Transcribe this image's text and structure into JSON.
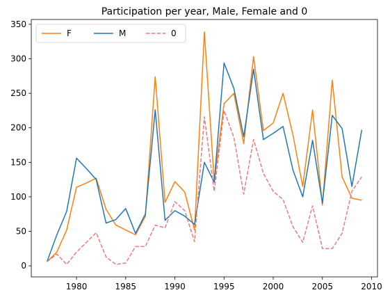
{
  "chart_data": {
    "type": "line",
    "title": "Participation per year, Male, Female and 0",
    "xlabel": "",
    "ylabel": "",
    "xlim": [
      1975.4,
      2010.6
    ],
    "ylim": [
      -16,
      357
    ],
    "x_ticks": [
      1980,
      1985,
      1990,
      1995,
      2000,
      2005,
      2010
    ],
    "y_ticks": [
      0,
      50,
      100,
      150,
      200,
      250,
      300,
      350
    ],
    "grid": false,
    "legend": {
      "placement": "top-left",
      "columns": 3
    },
    "x": [
      1977,
      1978,
      1979,
      1980,
      1981,
      1982,
      1983,
      1984,
      1985,
      1986,
      1987,
      1988,
      1989,
      1990,
      1991,
      1992,
      1993,
      1994,
      1995,
      1996,
      1997,
      1998,
      1999,
      2000,
      2001,
      2002,
      2003,
      2004,
      2005,
      2006,
      2007,
      2008,
      2009
    ],
    "series": [
      {
        "name": "F",
        "color": "#ff7f0e",
        "style": "solid",
        "values": [
          6,
          20,
          52,
          114,
          120,
          127,
          82,
          59,
          52,
          45,
          72,
          274,
          92,
          122,
          107,
          52,
          339,
          122,
          235,
          250,
          177,
          303,
          196,
          207,
          250,
          190,
          115,
          226,
          88,
          269,
          129,
          98,
          95
        ]
      },
      {
        "name": "M",
        "color": "#1f77b4",
        "style": "solid",
        "values": [
          6,
          45,
          79,
          156,
          141,
          125,
          62,
          67,
          83,
          47,
          75,
          226,
          66,
          80,
          72,
          60,
          150,
          121,
          294,
          257,
          187,
          285,
          183,
          192,
          202,
          139,
          100,
          182,
          91,
          218,
          199,
          115,
          197
        ]
      },
      {
        "name": "0",
        "color": "#e67c7c",
        "style": "dashed",
        "values": [
          6,
          17,
          2,
          20,
          34,
          48,
          13,
          2,
          4,
          28,
          28,
          59,
          55,
          93,
          80,
          35,
          216,
          108,
          225,
          186,
          104,
          183,
          134,
          108,
          96,
          57,
          34,
          87,
          25,
          25,
          47,
          108,
          129
        ]
      }
    ]
  }
}
